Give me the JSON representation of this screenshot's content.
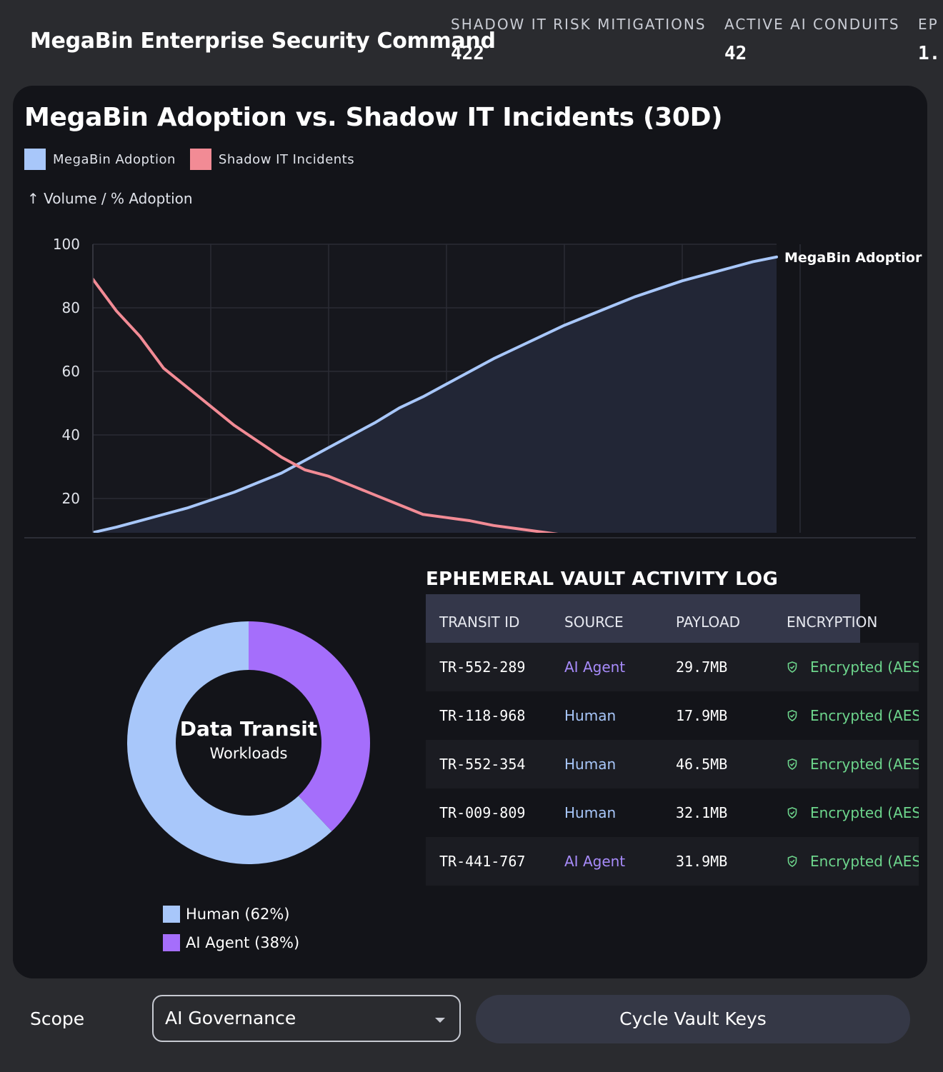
{
  "header": {
    "title": "MegaBin Enterprise Security Command",
    "stats": [
      {
        "label": "SHADOW IT RISK MITIGATIONS",
        "value": "422"
      },
      {
        "label": "ACTIVE AI CONDUITS",
        "value": "42"
      },
      {
        "label": "EP",
        "value": "1."
      }
    ]
  },
  "chart": {
    "title": "MegaBin Adoption vs. Shadow IT Incidents (30D)",
    "axis_caption": "↑ Volume / % Adoption",
    "end_label": "MegaBin Adoptior"
  },
  "chart_data": {
    "type": "area",
    "title": "MegaBin Adoption vs. Shadow IT Incidents (30D)",
    "ylabel": "Volume / % Adoption",
    "y_ticks": [
      20,
      40,
      60,
      80,
      100
    ],
    "ylim": [
      10,
      100
    ],
    "grid": true,
    "legend": "top-left",
    "x": [
      1,
      2,
      3,
      4,
      5,
      6,
      7,
      8,
      9,
      10,
      11,
      12,
      13,
      14,
      15,
      16,
      17,
      18,
      19,
      20,
      21,
      22,
      23,
      24,
      25,
      26,
      27,
      28,
      29,
      30
    ],
    "series": [
      {
        "name": "MegaBin Adoption",
        "color": "#a8c7fa",
        "values": [
          9.3,
          11,
          13,
          15,
          17,
          19.5,
          22,
          25,
          28,
          32,
          36,
          40,
          44,
          48.5,
          52,
          56,
          60,
          64,
          67.5,
          71,
          74.5,
          77.5,
          80.5,
          83.5,
          86,
          88.5,
          90.5,
          92.5,
          94.5,
          96
        ]
      },
      {
        "name": "Shadow IT Incidents",
        "color": "#f28b95",
        "values": [
          89,
          79,
          71,
          61,
          55,
          49,
          43,
          38,
          33,
          29,
          27,
          24,
          21,
          18,
          15,
          14,
          13,
          11.5,
          10.5,
          9.5,
          8.5,
          7.5,
          7,
          6.5,
          6,
          5.5,
          5,
          4.5,
          4,
          3.5
        ]
      }
    ]
  },
  "transit": {
    "title": "Data Transit",
    "subtitle": "Workloads",
    "segments": [
      {
        "label": "Human (62%)",
        "value": 62,
        "color": "#a8c7fa"
      },
      {
        "label": "AI Agent (38%)",
        "value": 38,
        "color": "#a56efb"
      }
    ]
  },
  "log": {
    "title": "EPHEMERAL VAULT ACTIVITY LOG",
    "columns": [
      "TRANSIT ID",
      "SOURCE",
      "PAYLOAD",
      "ENCRYPTION"
    ],
    "rows": [
      {
        "id": "TR-552-289",
        "source": "AI Agent",
        "payload": "29.7MB",
        "encryption": "Encrypted (AES"
      },
      {
        "id": "TR-118-968",
        "source": "Human",
        "payload": "17.9MB",
        "encryption": "Encrypted (AES"
      },
      {
        "id": "TR-552-354",
        "source": "Human",
        "payload": "46.5MB",
        "encryption": "Encrypted (AES"
      },
      {
        "id": "TR-009-809",
        "source": "Human",
        "payload": "32.1MB",
        "encryption": "Encrypted (AES"
      },
      {
        "id": "TR-441-767",
        "source": "AI Agent",
        "payload": "31.9MB",
        "encryption": "Encrypted (AES"
      }
    ]
  },
  "controls": {
    "scope_label": "Scope",
    "scope_value": "AI Governance",
    "cycle_button": "Cycle Vault Keys"
  }
}
